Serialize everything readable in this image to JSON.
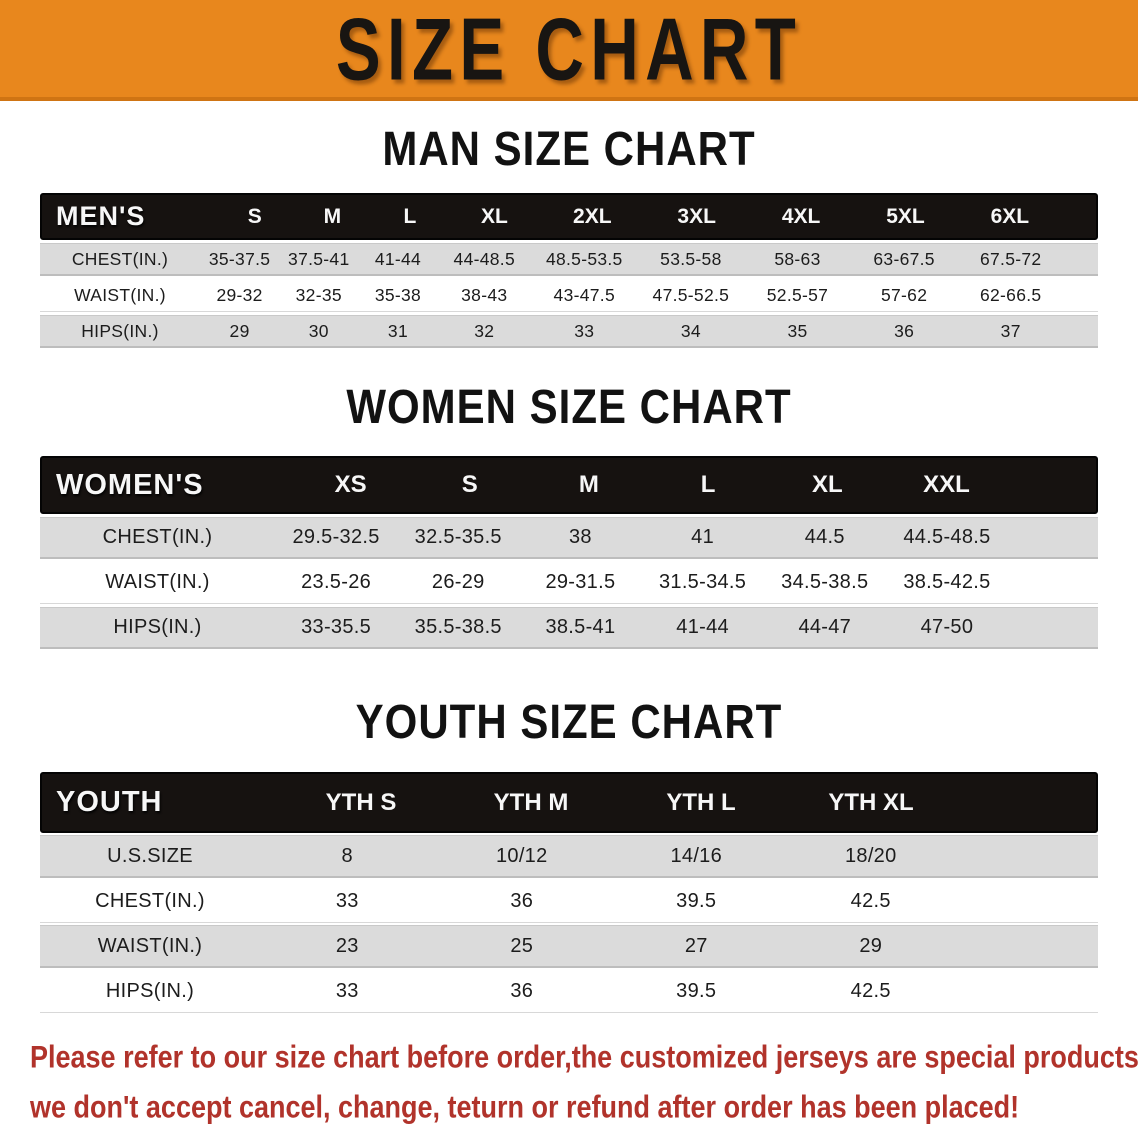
{
  "banner": {
    "title": "SIZE CHART"
  },
  "sections": [
    {
      "heading": "MAN SIZE CHART",
      "table": {
        "header": [
          "MEN'S",
          "S",
          "M",
          "L",
          "XL",
          "2XL",
          "3XL",
          "4XL",
          "5XL",
          "6XL"
        ],
        "rows": [
          [
            "CHEST(IN.)",
            "35-37.5",
            "37.5-41",
            "41-44",
            "44-48.5",
            "48.5-53.5",
            "53.5-58",
            "58-63",
            "63-67.5",
            "67.5-72"
          ],
          [
            "WAIST(IN.)",
            "29-32",
            "32-35",
            "35-38",
            "38-43",
            "43-47.5",
            "47.5-52.5",
            "52.5-57",
            "57-62",
            "62-66.5"
          ],
          [
            "HIPS(IN.)",
            "29",
            "30",
            "31",
            "32",
            "33",
            "34",
            "35",
            "36",
            "37"
          ]
        ]
      }
    },
    {
      "heading": "WOMEN SIZE CHART",
      "table": {
        "header": [
          "WOMEN'S",
          "XS",
          "S",
          "M",
          "L",
          "XL",
          "XXL"
        ],
        "rows": [
          [
            "CHEST(IN.)",
            "29.5-32.5",
            "32.5-35.5",
            "38",
            "41",
            "44.5",
            "44.5-48.5"
          ],
          [
            "WAIST(IN.)",
            "23.5-26",
            "26-29",
            "29-31.5",
            "31.5-34.5",
            "34.5-38.5",
            "38.5-42.5"
          ],
          [
            "HIPS(IN.)",
            "33-35.5",
            "35.5-38.5",
            "38.5-41",
            "41-44",
            "44-47",
            "47-50"
          ]
        ]
      }
    },
    {
      "heading": "YOUTH SIZE CHART",
      "table": {
        "header": [
          "YOUTH",
          "YTH S",
          "YTH M",
          "YTH L",
          "YTH XL"
        ],
        "rows": [
          [
            "U.S.SIZE",
            "8",
            "10/12",
            "14/16",
            "18/20"
          ],
          [
            "CHEST(IN.)",
            "33",
            "36",
            "39.5",
            "42.5"
          ],
          [
            "WAIST(IN.)",
            "23",
            "25",
            "27",
            "29"
          ],
          [
            "HIPS(IN.)",
            "33",
            "36",
            "39.5",
            "42.5"
          ]
        ]
      }
    }
  ],
  "note": {
    "line1": "Please refer to our size chart before order,the customized jerseys are special products,",
    "line2": "we don't accept cancel, change, teturn or refund after order has been placed!"
  },
  "colors": {
    "banner_bg": "#E8871D",
    "banner_text": "#181512",
    "header_bar_bg": "#161210",
    "header_bar_text": "#F7F7F7",
    "row_gray": "#DBDBDB",
    "row_white": "#FFFFFF",
    "note_red": "#B1332B"
  }
}
